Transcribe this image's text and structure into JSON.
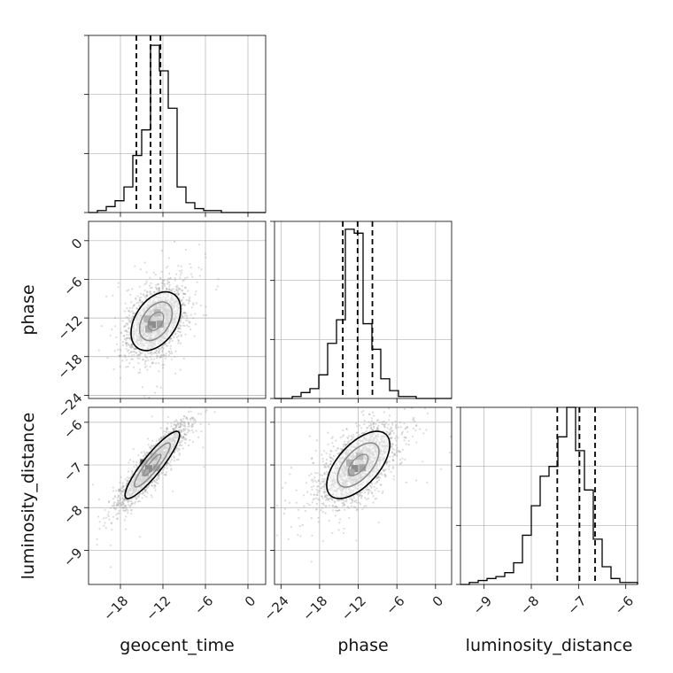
{
  "chart_data": {
    "type": "corner",
    "parameters": [
      "geocent_time",
      "phase",
      "luminosity_distance"
    ],
    "grid": true,
    "histograms": [
      {
        "name": "geocent_time",
        "xlim": [
          -22.5,
          2.5
        ],
        "bin_edges": [
          -22.5,
          -21.25,
          -20.0,
          -18.75,
          -17.5,
          -16.25,
          -15.0,
          -13.75,
          -12.5,
          -11.25,
          -10.0,
          -8.75,
          -7.5,
          -6.25,
          -5.0,
          -3.75,
          -2.5,
          -1.25,
          0.0,
          1.25,
          2.5
        ],
        "counts": [
          0.0,
          0.01,
          0.03,
          0.06,
          0.13,
          0.29,
          0.42,
          0.85,
          0.72,
          0.53,
          0.13,
          0.05,
          0.02,
          0.01,
          0.01,
          0.0,
          0.0,
          0.0,
          0.0,
          0.0
        ],
        "quantiles": [
          -15.75,
          -13.75,
          -12.35
        ]
      },
      {
        "name": "phase",
        "xlim": [
          -25.0,
          2.5
        ],
        "bin_edges": [
          -25.0,
          -23.625,
          -22.25,
          -20.875,
          -19.5,
          -18.125,
          -16.75,
          -15.375,
          -14.0,
          -12.625,
          -11.25,
          -9.875,
          -8.5,
          -7.125,
          -5.75,
          -4.375,
          -3.0,
          -1.625,
          -0.25,
          1.125,
          2.5
        ],
        "counts": [
          0.0,
          0.0,
          0.01,
          0.03,
          0.05,
          0.12,
          0.28,
          0.4,
          0.86,
          0.84,
          0.38,
          0.25,
          0.1,
          0.04,
          0.01,
          0.01,
          0.0,
          0.0,
          0.0,
          0.0
        ],
        "quantiles": [
          -14.4,
          -12.1,
          -9.8
        ]
      },
      {
        "name": "luminosity_distance",
        "xlim": [
          -9.5,
          -5.75
        ],
        "bin_edges": [
          -9.5,
          -9.3125,
          -9.125,
          -8.9375,
          -8.75,
          -8.5625,
          -8.375,
          -8.1875,
          -8.0,
          -7.8125,
          -7.625,
          -7.4375,
          -7.25,
          -7.0625,
          -6.875,
          -6.6875,
          -6.5,
          -6.3125,
          -6.125,
          -5.9375,
          -5.75
        ],
        "counts": [
          0.0,
          0.01,
          0.02,
          0.03,
          0.04,
          0.06,
          0.11,
          0.25,
          0.4,
          0.55,
          0.6,
          0.75,
          0.9,
          0.68,
          0.48,
          0.23,
          0.09,
          0.03,
          0.01,
          0.01
        ],
        "quantiles": [
          -7.45,
          -6.98,
          -6.65
        ]
      }
    ],
    "scatter_panels": [
      {
        "x": "geocent_time",
        "y": "phase",
        "xlim": [
          -22.5,
          2.5
        ],
        "ylim": [
          -24.5,
          3.0
        ],
        "center": [
          -13.0,
          -12.5
        ],
        "sigma": [
          2.0,
          2.6
        ],
        "rho": 0.4
      },
      {
        "x": "geocent_time",
        "y": "luminosity_distance",
        "xlim": [
          -22.5,
          2.5
        ],
        "ylim": [
          -9.8,
          -5.65
        ],
        "center": [
          -13.5,
          -7.0
        ],
        "sigma": [
          2.2,
          0.45
        ],
        "rho": 0.9
      },
      {
        "x": "phase",
        "y": "luminosity_distance",
        "xlim": [
          -25.0,
          2.5
        ],
        "ylim": [
          -9.8,
          -5.65
        ],
        "center": [
          -12.0,
          -7.0
        ],
        "sigma": [
          2.8,
          0.45
        ],
        "rho": 0.6
      }
    ],
    "ticks": {
      "geocent_time": [
        -18,
        -12,
        -6,
        0
      ],
      "phase": [
        -24,
        -18,
        -12,
        -6,
        0
      ],
      "luminosity_distance": [
        -9,
        -8,
        -7,
        -6
      ]
    },
    "tick_labels": {
      "geocent_time": [
        "−18",
        "−12",
        "−6",
        "0"
      ],
      "phase": [
        "−24",
        "−18",
        "−12",
        "−6",
        "0"
      ],
      "luminosity_distance": [
        "−9",
        "−8",
        "−7",
        "−6"
      ]
    },
    "ylabel_left": [
      "phase",
      "luminosity_distance"
    ],
    "phase_y_ticks": [
      0,
      -6,
      -12,
      -18,
      -24
    ],
    "phase_y_tick_labels": [
      "0",
      "−6",
      "−12",
      "−18",
      "−24"
    ],
    "lumdist_y_ticks": [
      -6,
      -7,
      -8,
      -9
    ],
    "lumdist_y_tick_labels": [
      "−6",
      "−7",
      "−8",
      "−9"
    ],
    "xlabel_bottom": [
      "geocent_time",
      "phase",
      "luminosity_distance"
    ],
    "colors": {
      "line": "#000000",
      "points": "#9a9a9a",
      "grid": "#b0b0b0"
    }
  }
}
